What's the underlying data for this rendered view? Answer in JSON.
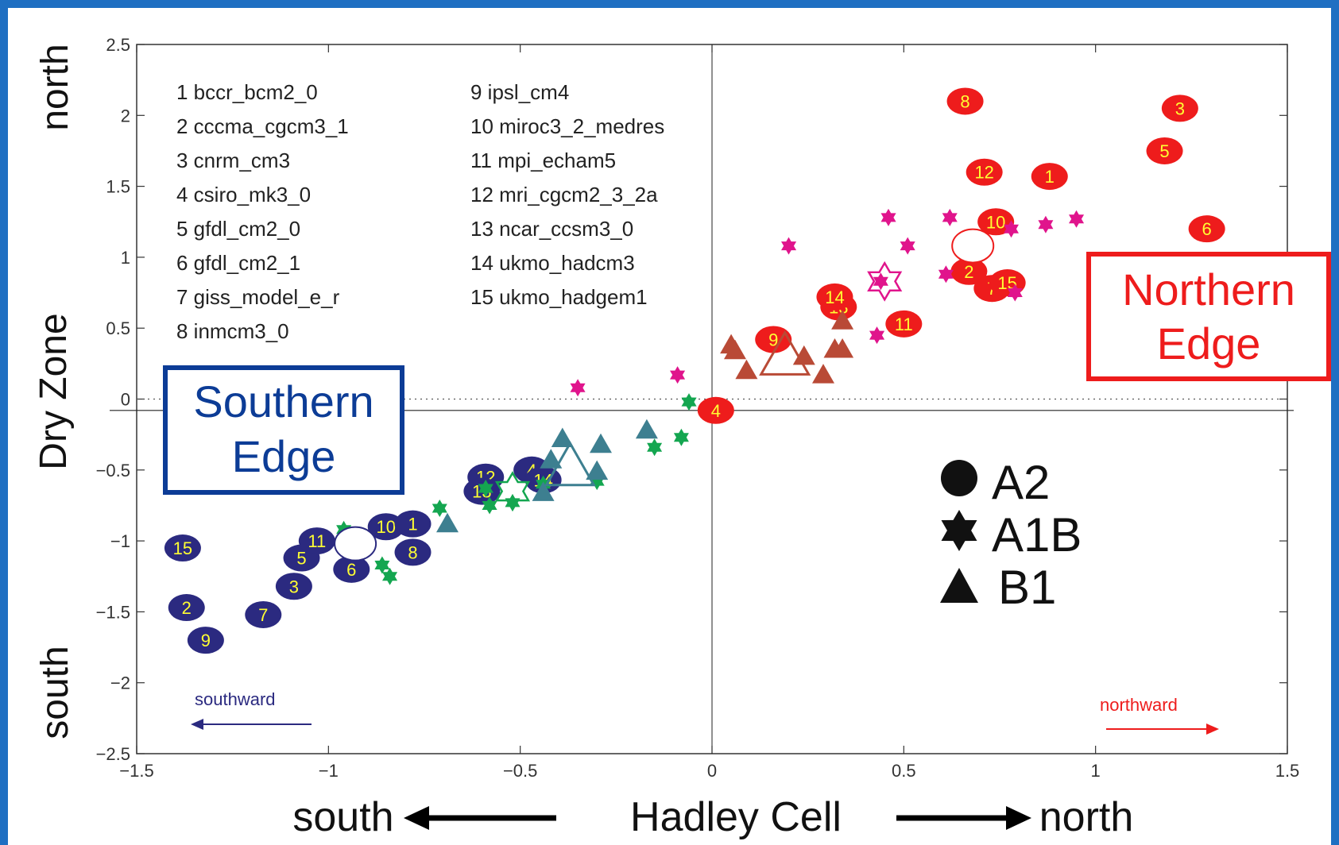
{
  "colors": {
    "frame": "#1f6fc2",
    "south_fill": "#2b2a80",
    "north_fill": "#ee1c1c",
    "label_yellow": "#ffff33",
    "a1b_north": "#e0148c",
    "a1b_south": "#14a650",
    "b1_north": "#b94a36",
    "b1_south": "#3d7f90",
    "southern_edge": "#0c3c96",
    "northern_edge": "#ee1c1c"
  },
  "chart_data": {
    "type": "scatter",
    "xlim": [
      -1.5,
      1.5
    ],
    "ylim": [
      -2.5,
      2.5
    ],
    "xticks": [
      -1.5,
      -1,
      -0.5,
      0,
      0.5,
      1,
      1.5
    ],
    "yticks": [
      -2.5,
      -2,
      -1.5,
      -1,
      -0.5,
      0,
      0.5,
      1,
      1.5,
      2,
      2.5
    ],
    "xtick_labels": [
      "−1.5",
      "−1",
      "−0.5",
      "0",
      "0.5",
      "1",
      "1.5"
    ],
    "ytick_labels": [
      "−2.5",
      "−2",
      "−1.5",
      "−1",
      "−0.5",
      "0",
      "0.5",
      "1",
      "1.5",
      "2",
      "2.5"
    ],
    "xlabel": "Hadley Cell",
    "xlabel_left": "south",
    "xlabel_right": "north",
    "ylabel": "Dry Zone",
    "ylabel_top": "north",
    "ylabel_bottom": "south",
    "edge_labels": {
      "southern": [
        "Southern",
        "Edge"
      ],
      "northern": [
        "Northern",
        "Edge"
      ]
    },
    "arrow_labels": {
      "southward": "southward",
      "northward": "northward"
    },
    "model_list_col1": [
      "1 bccr_bcm2_0",
      "2 cccma_cgcm3_1",
      "3 cnrm_cm3",
      "4 csiro_mk3_0",
      "5 gfdl_cm2_0",
      "6 gfdl_cm2_1",
      "7 giss_model_e_r",
      "8 inmcm3_0"
    ],
    "model_list_col2": [
      "9 ipsl_cm4",
      "10 miroc3_2_medres",
      "11 mpi_echam5",
      "12 mri_cgcm2_3_2a",
      "13 ncar_ccsm3_0",
      "14 ukmo_hadcm3",
      "15 ukmo_hadgem1"
    ],
    "legend": [
      {
        "symbol": "circle",
        "label": "A2"
      },
      {
        "symbol": "star",
        "label": "A1B"
      },
      {
        "symbol": "triangle",
        "label": "B1"
      }
    ],
    "series": [
      {
        "name": "A2",
        "edge": "north",
        "points": [
          {
            "x": 0.66,
            "y": 2.1,
            "label": "8"
          },
          {
            "x": 1.22,
            "y": 2.05,
            "label": "3"
          },
          {
            "x": 1.18,
            "y": 1.75,
            "label": "5"
          },
          {
            "x": 0.71,
            "y": 1.6,
            "label": "12"
          },
          {
            "x": 0.88,
            "y": 1.57,
            "label": "1"
          },
          {
            "x": 0.74,
            "y": 1.25,
            "label": "10"
          },
          {
            "x": 1.29,
            "y": 1.2,
            "label": "6"
          },
          {
            "x": 0.67,
            "y": 0.9,
            "label": "2"
          },
          {
            "x": 0.73,
            "y": 0.78,
            "label": "7"
          },
          {
            "x": 0.77,
            "y": 0.82,
            "label": "15"
          },
          {
            "x": 0.33,
            "y": 0.65,
            "label": "13"
          },
          {
            "x": 0.32,
            "y": 0.72,
            "label": "14"
          },
          {
            "x": 0.5,
            "y": 0.53,
            "label": "11"
          },
          {
            "x": 0.16,
            "y": 0.42,
            "label": "9"
          },
          {
            "x": 0.01,
            "y": -0.08,
            "label": "4"
          }
        ]
      },
      {
        "name": "A2",
        "edge": "south",
        "points": [
          {
            "x": -1.38,
            "y": -1.05,
            "label": "15"
          },
          {
            "x": -1.37,
            "y": -1.47,
            "label": "2"
          },
          {
            "x": -1.32,
            "y": -1.7,
            "label": "9"
          },
          {
            "x": -1.17,
            "y": -1.52,
            "label": "7"
          },
          {
            "x": -1.09,
            "y": -1.32,
            "label": "3"
          },
          {
            "x": -1.07,
            "y": -1.12,
            "label": "5"
          },
          {
            "x": -1.03,
            "y": -1.0,
            "label": "11"
          },
          {
            "x": -0.94,
            "y": -1.2,
            "label": "6"
          },
          {
            "x": -0.85,
            "y": -0.9,
            "label": "10"
          },
          {
            "x": -0.78,
            "y": -0.88,
            "label": "1"
          },
          {
            "x": -0.78,
            "y": -1.08,
            "label": "8"
          },
          {
            "x": -0.59,
            "y": -0.55,
            "label": "12"
          },
          {
            "x": -0.6,
            "y": -0.65,
            "label": "13"
          },
          {
            "x": -0.47,
            "y": -0.5,
            "label": "4"
          },
          {
            "x": -0.44,
            "y": -0.57,
            "label": "14"
          }
        ]
      },
      {
        "name": "A1B",
        "edge": "north",
        "points": [
          {
            "x": -0.35,
            "y": 0.08
          },
          {
            "x": -0.09,
            "y": 0.17
          },
          {
            "x": 0.2,
            "y": 1.08
          },
          {
            "x": 0.46,
            "y": 1.28
          },
          {
            "x": 0.51,
            "y": 1.08
          },
          {
            "x": 0.62,
            "y": 1.28
          },
          {
            "x": 0.61,
            "y": 0.88
          },
          {
            "x": 0.78,
            "y": 1.2
          },
          {
            "x": 0.87,
            "y": 1.23
          },
          {
            "x": 0.95,
            "y": 1.27
          },
          {
            "x": 0.79,
            "y": 0.75
          },
          {
            "x": 0.44,
            "y": 0.83
          },
          {
            "x": 0.43,
            "y": 0.45
          }
        ]
      },
      {
        "name": "A1B",
        "edge": "south",
        "points": [
          {
            "x": -0.06,
            "y": -0.02
          },
          {
            "x": -0.08,
            "y": -0.27
          },
          {
            "x": -0.15,
            "y": -0.34
          },
          {
            "x": -0.3,
            "y": -0.58
          },
          {
            "x": -0.44,
            "y": -0.6
          },
          {
            "x": -0.52,
            "y": -0.73
          },
          {
            "x": -0.58,
            "y": -0.75
          },
          {
            "x": -0.59,
            "y": -0.63
          },
          {
            "x": -0.71,
            "y": -0.77
          },
          {
            "x": -0.96,
            "y": -0.92
          },
          {
            "x": -0.86,
            "y": -1.17
          },
          {
            "x": -0.84,
            "y": -1.25
          }
        ]
      },
      {
        "name": "B1",
        "edge": "north",
        "points": [
          {
            "x": 0.05,
            "y": 0.38
          },
          {
            "x": 0.06,
            "y": 0.34
          },
          {
            "x": 0.09,
            "y": 0.2
          },
          {
            "x": 0.24,
            "y": 0.3
          },
          {
            "x": 0.29,
            "y": 0.17
          },
          {
            "x": 0.32,
            "y": 0.35
          },
          {
            "x": 0.34,
            "y": 0.35
          },
          {
            "x": 0.34,
            "y": 0.55
          }
        ]
      },
      {
        "name": "B1",
        "edge": "south",
        "points": [
          {
            "x": -0.39,
            "y": -0.28
          },
          {
            "x": -0.29,
            "y": -0.32
          },
          {
            "x": -0.17,
            "y": -0.22
          },
          {
            "x": -0.42,
            "y": -0.43
          },
          {
            "x": -0.3,
            "y": -0.51
          },
          {
            "x": -0.44,
            "y": -0.66
          },
          {
            "x": -0.69,
            "y": -0.88
          }
        ]
      }
    ],
    "mean_markers": [
      {
        "type": "circle",
        "edge": "north",
        "x": 0.68,
        "y": 1.08
      },
      {
        "type": "star",
        "edge": "north",
        "x": 0.45,
        "y": 0.83
      },
      {
        "type": "triangle",
        "edge": "north",
        "x": 0.19,
        "y": 0.3
      },
      {
        "type": "circle",
        "edge": "south",
        "x": -0.93,
        "y": -1.02
      },
      {
        "type": "star",
        "edge": "south",
        "x": -0.52,
        "y": -0.65
      },
      {
        "type": "triangle",
        "edge": "south",
        "x": -0.37,
        "y": -0.48
      }
    ],
    "horizontal_line_y": -0.08,
    "dotted_line_y": 0
  }
}
